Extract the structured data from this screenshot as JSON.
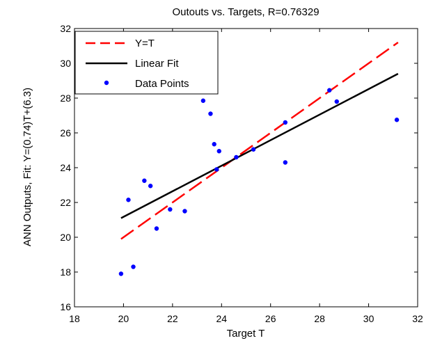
{
  "chart_data": {
    "type": "scatter",
    "title": "Outouts vs. Targets, R=0.76329",
    "xlabel": "Target T",
    "ylabel": "ANN Outputs, Fit: Y=(0.74)T+(6.3)",
    "xlim": [
      18,
      32
    ],
    "ylim": [
      16,
      32
    ],
    "xticks": [
      18,
      20,
      22,
      24,
      26,
      28,
      30,
      32
    ],
    "yticks": [
      16,
      18,
      20,
      22,
      24,
      26,
      28,
      30,
      32
    ],
    "grid": false,
    "legend_position": "top-left",
    "series": [
      {
        "name": "Y=T",
        "kind": "dashed-line",
        "color": "#ff0000",
        "x": [
          19.9,
          31.2
        ],
        "y": [
          19.9,
          31.2
        ]
      },
      {
        "name": "Linear Fit",
        "kind": "line",
        "color": "#000000",
        "x": [
          19.9,
          31.2
        ],
        "y": [
          21.1,
          29.4
        ]
      },
      {
        "name": "Data Points",
        "kind": "scatter",
        "color": "#0000ff",
        "x": [
          19.9,
          20.2,
          20.4,
          20.85,
          21.1,
          21.35,
          21.9,
          22.5,
          23.25,
          23.55,
          23.7,
          23.8,
          23.9,
          24.6,
          25.3,
          26.6,
          26.6,
          28.4,
          28.7,
          31.15
        ],
        "y": [
          17.9,
          22.15,
          18.3,
          23.25,
          22.95,
          20.5,
          21.6,
          21.5,
          27.85,
          27.1,
          25.35,
          23.9,
          24.95,
          24.6,
          25.05,
          24.3,
          26.6,
          28.45,
          27.8,
          26.75
        ]
      }
    ]
  }
}
